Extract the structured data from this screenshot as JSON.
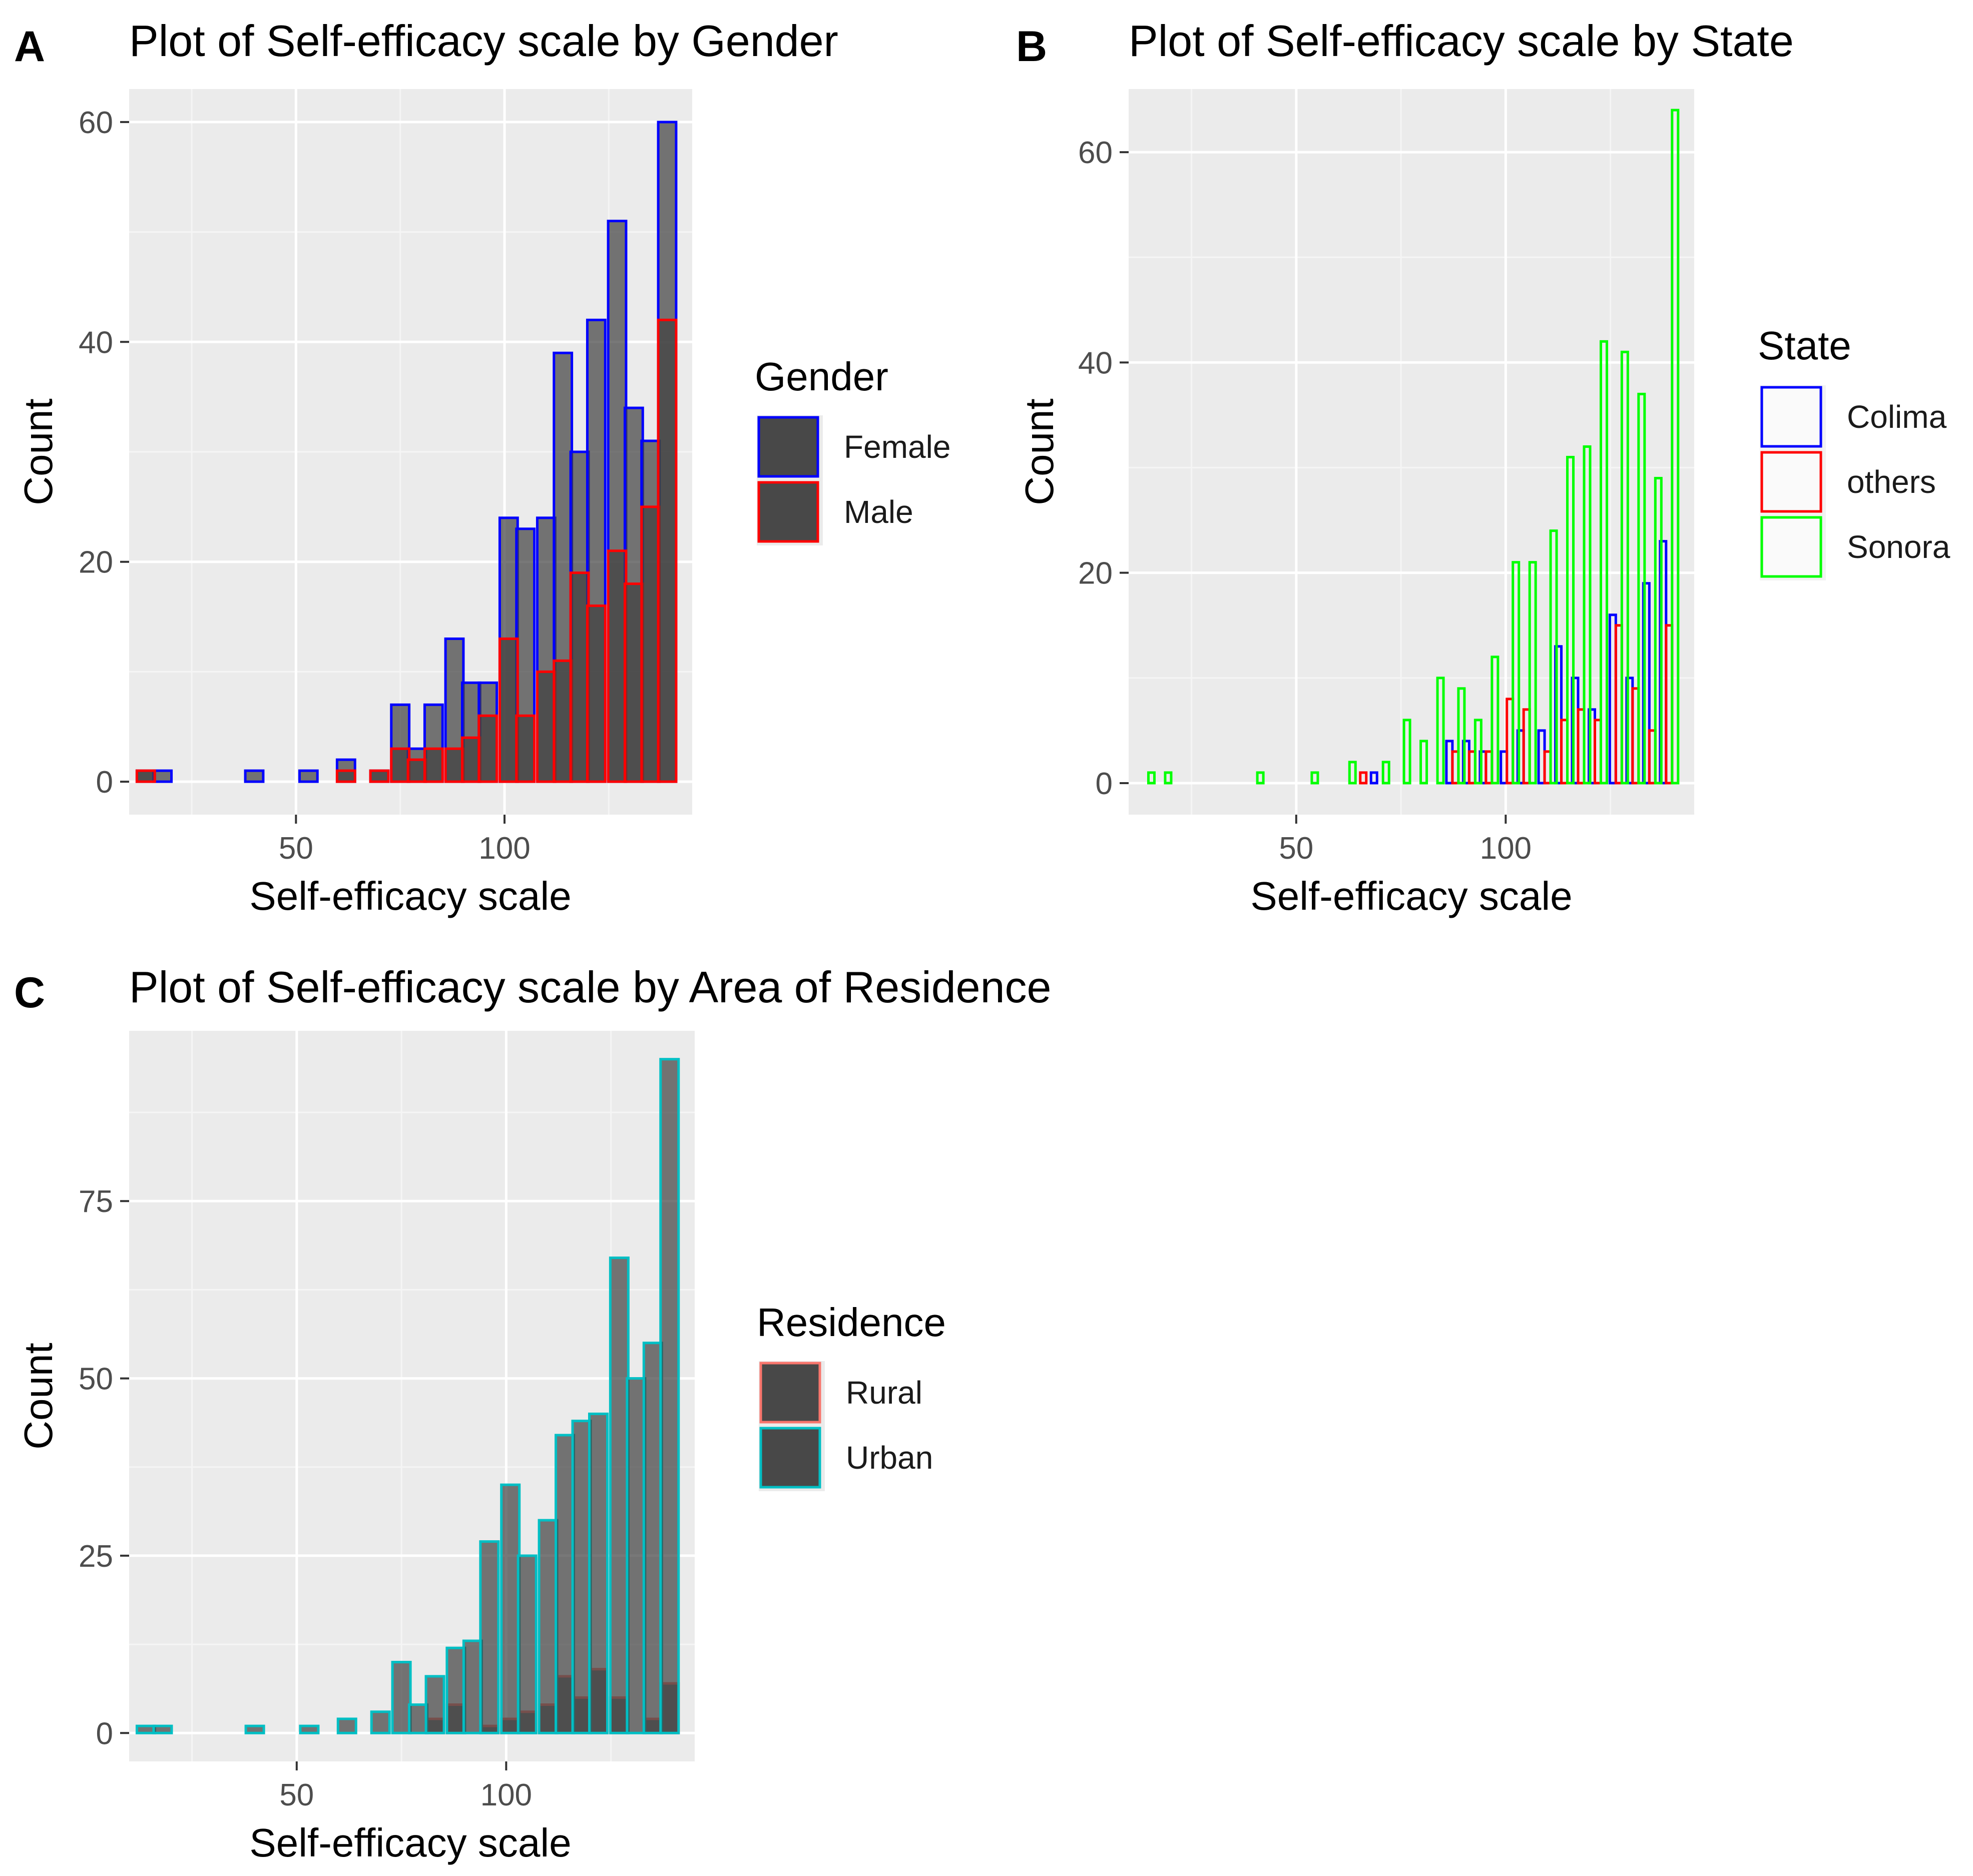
{
  "chart_data": [
    {
      "panel": "A",
      "type": "bar",
      "title": "Plot of Self-efficacy scale by Gender",
      "xlabel": "Self-efficacy scale",
      "ylabel": "Count",
      "xlim": [
        10,
        145
      ],
      "ylim": [
        -3,
        63
      ],
      "xticks": [
        50,
        100
      ],
      "yticks": [
        0,
        20,
        40,
        60
      ],
      "bin_width": 4.3,
      "x": [
        14,
        18,
        27,
        31,
        40,
        53,
        62,
        66,
        70,
        75,
        79,
        83,
        88,
        92,
        96,
        101,
        105,
        110,
        114,
        118,
        122,
        127,
        131,
        135,
        139
      ],
      "legend": {
        "title": "Gender",
        "position": "right"
      },
      "series": [
        {
          "name": "Female",
          "border": "#0000ff",
          "fill": "#3f3f3f",
          "values": [
            1,
            1,
            0,
            0,
            1,
            1,
            2,
            0,
            1,
            7,
            3,
            7,
            13,
            9,
            9,
            24,
            23,
            24,
            39,
            30,
            42,
            51,
            34,
            31,
            60
          ]
        },
        {
          "name": "Male",
          "border": "#ff0000",
          "fill": "#3f3f3f",
          "values": [
            1,
            0,
            0,
            0,
            0,
            0,
            1,
            0,
            1,
            3,
            2,
            3,
            3,
            4,
            6,
            13,
            6,
            10,
            11,
            19,
            16,
            21,
            18,
            25,
            42
          ]
        }
      ]
    },
    {
      "panel": "B",
      "type": "bar",
      "title": "Plot of Self-efficacy scale by State",
      "xlabel": "Self-efficacy scale",
      "ylabel": "Count",
      "xlim": [
        10,
        145
      ],
      "ylim": [
        -3,
        66
      ],
      "xticks": [
        50,
        100
      ],
      "yticks": [
        0,
        20,
        40,
        60
      ],
      "bin_width": 4.3,
      "x": [
        14,
        18,
        27,
        31,
        40,
        53,
        62,
        66,
        70,
        75,
        79,
        83,
        88,
        92,
        96,
        101,
        105,
        110,
        114,
        118,
        122,
        127,
        131,
        135,
        139
      ],
      "legend": {
        "title": "State",
        "position": "right"
      },
      "series": [
        {
          "name": "Colima",
          "border": "#0000ff",
          "values": [
            0,
            0,
            0,
            0,
            0,
            0,
            0,
            0,
            1,
            0,
            0,
            0,
            4,
            4,
            3,
            3,
            5,
            5,
            13,
            10,
            7,
            16,
            10,
            19,
            23
          ]
        },
        {
          "name": "others",
          "border": "#ff0000",
          "values": [
            0,
            0,
            0,
            0,
            0,
            0,
            0,
            1,
            0,
            0,
            0,
            0,
            3,
            3,
            3,
            8,
            7,
            3,
            6,
            7,
            6,
            15,
            9,
            5,
            15
          ]
        },
        {
          "name": "Sonora",
          "border": "#00ff00",
          "values": [
            1,
            1,
            0,
            0,
            1,
            1,
            2,
            0,
            2,
            6,
            4,
            10,
            9,
            6,
            12,
            21,
            21,
            24,
            31,
            32,
            42,
            41,
            37,
            29,
            64
          ]
        }
      ]
    },
    {
      "panel": "C",
      "type": "bar",
      "title": "Plot of Self-efficacy scale by Area of Residence",
      "xlabel": "Self-efficacy scale",
      "ylabel": "Count",
      "xlim": [
        10,
        145
      ],
      "ylim": [
        -4,
        99
      ],
      "xticks": [
        50,
        100
      ],
      "yticks": [
        0,
        25,
        50,
        75
      ],
      "bin_width": 4.3,
      "x": [
        14,
        18,
        27,
        31,
        40,
        53,
        62,
        66,
        70,
        75,
        79,
        83,
        88,
        92,
        96,
        101,
        105,
        110,
        114,
        118,
        122,
        127,
        131,
        135,
        139
      ],
      "legend": {
        "title": "Residence",
        "position": "right"
      },
      "series": [
        {
          "name": "Rural",
          "border": "#f8766d",
          "fill": "#3f3f3f",
          "values": [
            0,
            0,
            0,
            0,
            0,
            0,
            0,
            0,
            0,
            0,
            0,
            2,
            4,
            0,
            1,
            2,
            3,
            4,
            8,
            5,
            9,
            5,
            0,
            2,
            7
          ]
        },
        {
          "name": "Urban",
          "border": "#00bfc4",
          "fill": "#3f3f3f",
          "values": [
            1,
            1,
            0,
            0,
            1,
            1,
            2,
            0,
            3,
            10,
            4,
            8,
            12,
            13,
            27,
            35,
            25,
            30,
            42,
            44,
            45,
            67,
            50,
            55,
            95
          ]
        }
      ]
    }
  ],
  "colors": {
    "panel_bg": "#ebebeb",
    "grid_major": "#ffffff",
    "grid_minor": "#f5f5f5",
    "tick_text": "#4d4d4d"
  }
}
